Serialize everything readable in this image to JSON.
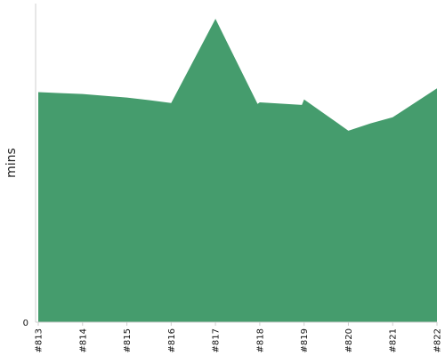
{
  "chart_data": {
    "type": "area",
    "title": "",
    "xlabel": "",
    "ylabel": "mins",
    "categories": [
      "#813",
      "#814",
      "#815",
      "#816",
      "#817",
      "#818",
      "#819",
      "#820",
      "#821",
      "#822"
    ],
    "intermediate_points": [
      {
        "between": [
          "#813",
          "#814"
        ],
        "position": 0.5,
        "value": 71.9
      },
      {
        "between": [
          "#815",
          "#816"
        ],
        "position": 0.5,
        "value": 69.7
      },
      {
        "between": [
          "#817",
          "#818"
        ],
        "position": 0.95,
        "value": 68.5
      },
      {
        "between": [
          "#818",
          "#819"
        ],
        "position": 0.95,
        "value": 68.2
      },
      {
        "between": [
          "#820",
          "#821"
        ],
        "position": 0.5,
        "value": 62.4
      }
    ],
    "values": [
      72.2,
      71.6,
      70.5,
      68.8,
      95.2,
      69.0,
      69.9,
      60.1,
      64.3,
      73.4
    ],
    "y_ticks": [
      0
    ],
    "ylim": [
      0,
      100
    ],
    "series": [
      {
        "name": "",
        "values": [
          72.2,
          71.6,
          70.5,
          68.8,
          95.2,
          69.0,
          69.9,
          60.1,
          64.3,
          73.4
        ],
        "color": "#459c6d"
      }
    ],
    "grid": false,
    "legend": "none"
  }
}
